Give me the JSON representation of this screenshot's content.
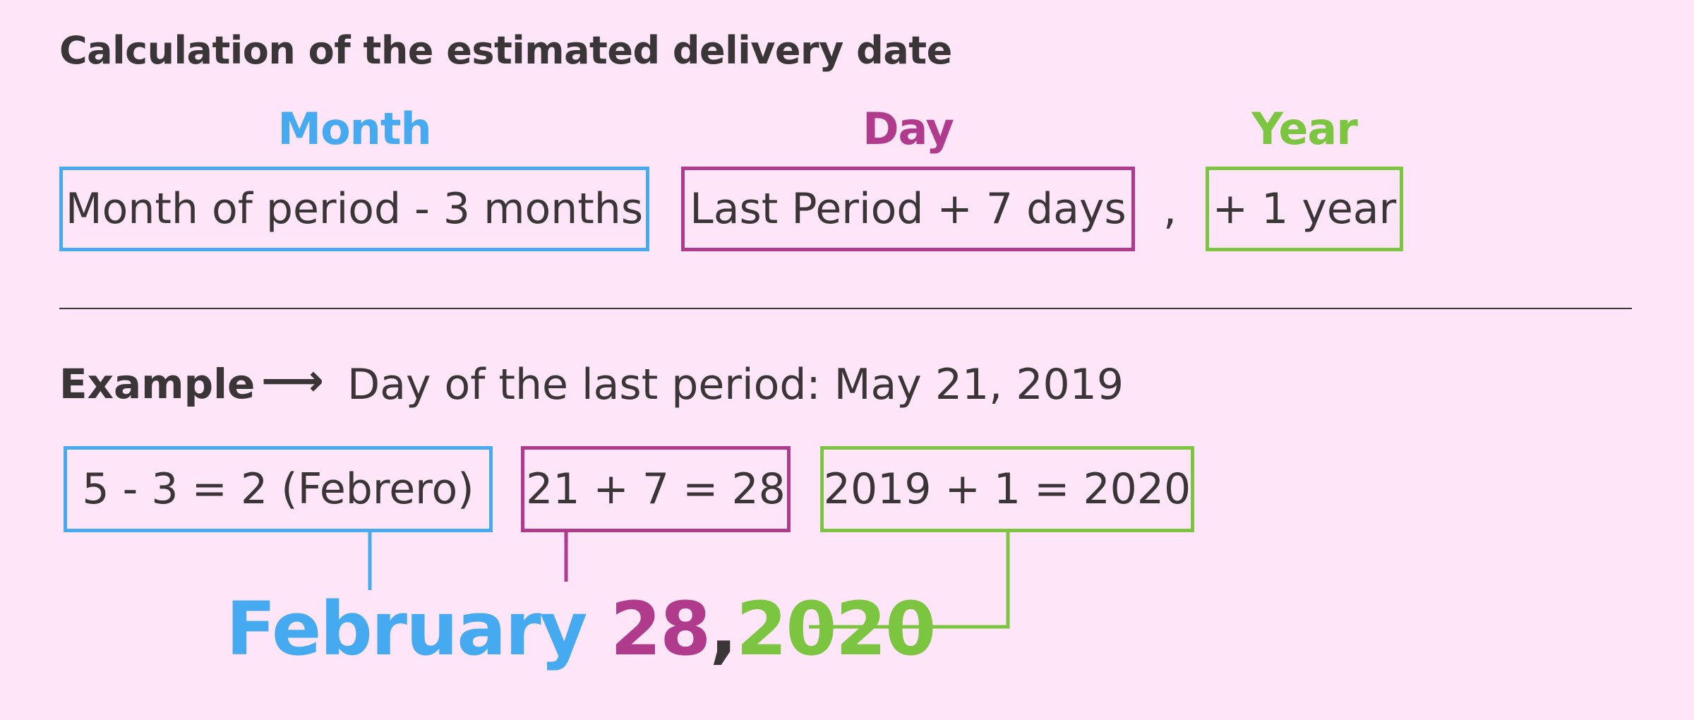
{
  "title": "Calculation of the estimated delivery date",
  "formula": {
    "month": {
      "label": "Month",
      "rule": "Month of period - 3 months"
    },
    "day": {
      "label": "Day",
      "rule": "Last Period + 7 days"
    },
    "separator": ",",
    "year": {
      "label": "Year",
      "rule": "+ 1 year"
    }
  },
  "example": {
    "label": "Example",
    "arrow": "⟶",
    "text": "Day of the last period: May 21, 2019",
    "month_calc": "5 - 3 = 2 (Febrero)",
    "day_calc": "21 + 7 = 28",
    "year_calc": "2019 + 1 = 2020"
  },
  "result": {
    "month": "February",
    "day": "28",
    "comma": ",",
    "year": "2020"
  },
  "colors": {
    "month": "#46aaf0",
    "day": "#b03a8c",
    "year": "#7cc540",
    "background": "#ffe5f8",
    "text": "#3a3537"
  }
}
